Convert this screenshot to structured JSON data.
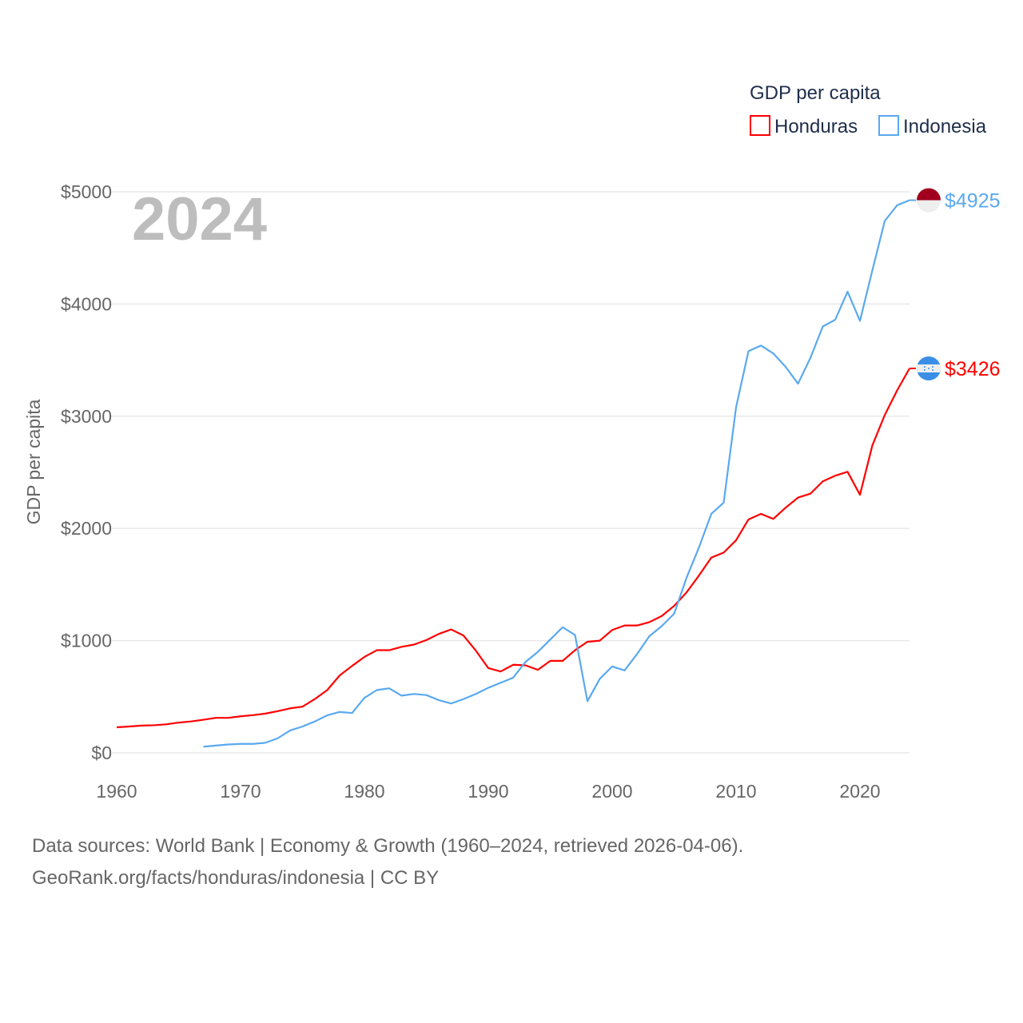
{
  "chart_data": {
    "type": "line",
    "title": "GDP per capita",
    "ylabel": "GDP per capita",
    "xlabel": "",
    "xlim": [
      1960,
      2024
    ],
    "ylim": [
      0,
      5000
    ],
    "x_ticks": [
      "1960",
      "1970",
      "1980",
      "1990",
      "2000",
      "2010",
      "2020"
    ],
    "y_ticks": [
      "$0",
      "$1000",
      "$2000",
      "$3000",
      "$4000",
      "$5000"
    ],
    "grid": true,
    "legend_position": "top-right",
    "year_label": "2024",
    "series": [
      {
        "name": "Honduras",
        "color": "#ff0000",
        "end_label": "$3426",
        "start_year": 1960,
        "values": [
          228,
          235,
          243,
          246,
          254,
          270,
          280,
          295,
          312,
          312,
          326,
          336,
          350,
          372,
          397,
          412,
          480,
          560,
          690,
          775,
          855,
          915,
          915,
          945,
          965,
          1005,
          1060,
          1100,
          1045,
          910,
          755,
          725,
          785,
          780,
          740,
          820,
          820,
          915,
          990,
          1000,
          1095,
          1135,
          1135,
          1165,
          1220,
          1310,
          1430,
          1580,
          1740,
          1785,
          1895,
          2080,
          2130,
          2085,
          2185,
          2275,
          2310,
          2420,
          2470,
          2505,
          2300,
          2740,
          3010,
          3230,
          3426
        ]
      },
      {
        "name": "Indonesia",
        "color": "#5aa9f0",
        "end_label": "$4925",
        "start_year": 1967,
        "values": [
          55,
          65,
          75,
          80,
          80,
          90,
          130,
          200,
          235,
          280,
          335,
          365,
          355,
          490,
          560,
          575,
          510,
          525,
          515,
          470,
          440,
          480,
          525,
          580,
          625,
          670,
          810,
          900,
          1010,
          1120,
          1050,
          460,
          660,
          770,
          735,
          880,
          1040,
          1130,
          1240,
          1560,
          1830,
          2130,
          2230,
          3080,
          3580,
          3630,
          3560,
          3440,
          3290,
          3520,
          3800,
          3860,
          4110,
          3850,
          4300,
          4740,
          4880,
          4925
        ]
      }
    ]
  },
  "footer": {
    "line1": "Data sources: World Bank | Economy & Growth (1960–2024, retrieved 2026-04-06).",
    "line2": "GeoRank.org/facts/honduras/indonesia | CC BY"
  }
}
